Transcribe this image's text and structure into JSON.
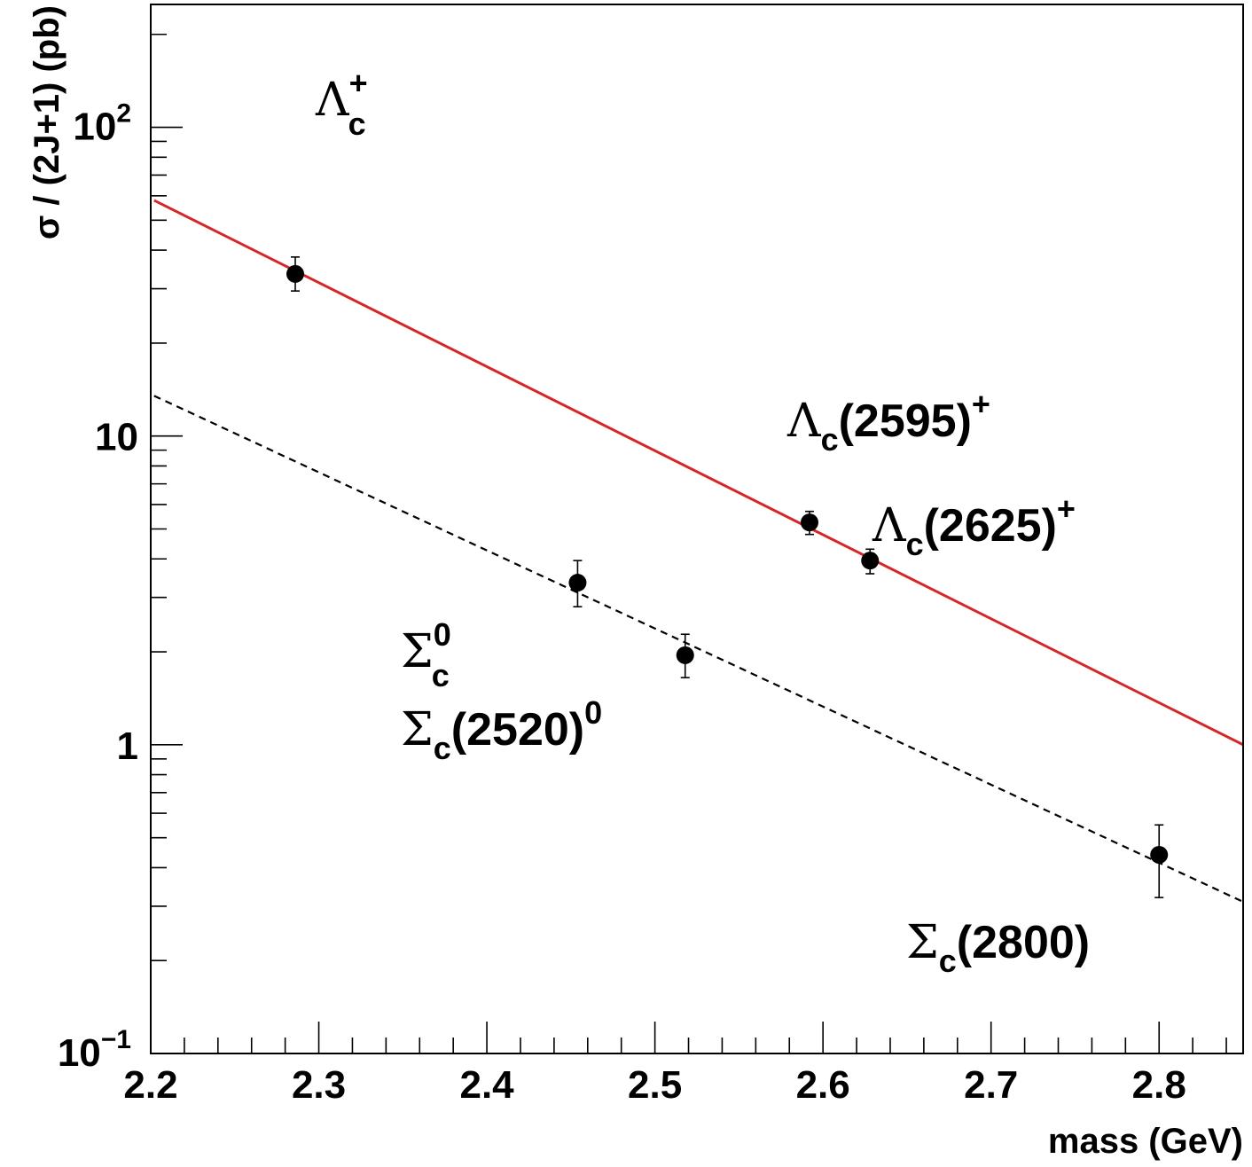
{
  "chart_data": {
    "type": "scatter",
    "xlabel": "mass (GeV)",
    "ylabel": "σ / (2J+1) (pb)",
    "xlim": [
      2.2,
      2.85
    ],
    "ylim": [
      0.1,
      250
    ],
    "yscale": "log",
    "grid": false,
    "x_ticks": [
      {
        "value": 2.2,
        "label": "2.2"
      },
      {
        "value": 2.3,
        "label": "2.3"
      },
      {
        "value": 2.4,
        "label": "2.4"
      },
      {
        "value": 2.5,
        "label": "2.5"
      },
      {
        "value": 2.6,
        "label": "2.6"
      },
      {
        "value": 2.7,
        "label": "2.7"
      },
      {
        "value": 2.8,
        "label": "2.8"
      }
    ],
    "y_ticks": [
      {
        "value": 0.1,
        "base": "10",
        "exp": "−1"
      },
      {
        "value": 1,
        "base": "1",
        "exp": ""
      },
      {
        "value": 10,
        "base": "10",
        "exp": ""
      },
      {
        "value": 100,
        "base": "10",
        "exp": "2"
      }
    ],
    "points": [
      {
        "x": 2.286,
        "y": 33.5,
        "yerr_low": 29.5,
        "yerr_high": 38.0
      },
      {
        "x": 2.454,
        "y": 3.35,
        "yerr_low": 2.8,
        "yerr_high": 3.95
      },
      {
        "x": 2.518,
        "y": 1.95,
        "yerr_low": 1.65,
        "yerr_high": 2.28
      },
      {
        "x": 2.592,
        "y": 5.25,
        "yerr_low": 4.8,
        "yerr_high": 5.7
      },
      {
        "x": 2.628,
        "y": 3.95,
        "yerr_low": 3.58,
        "yerr_high": 4.3
      },
      {
        "x": 2.8,
        "y": 0.44,
        "yerr_low": 0.32,
        "yerr_high": 0.55
      }
    ],
    "fits": [
      {
        "style": "solid",
        "color": "#d62728",
        "x": [
          2.202,
          2.85
        ],
        "y": [
          58.0,
          1.0
        ]
      },
      {
        "style": "dashed",
        "color": "#000000",
        "x": [
          2.202,
          2.85
        ],
        "y": [
          13.5,
          0.31
        ]
      }
    ],
    "annotations": [
      {
        "id": "lambda-c-plus",
        "symbol": "Λ",
        "sub": "c",
        "sup": "+",
        "text": "",
        "suffix_sup": ""
      },
      {
        "id": "lambda-c-2595",
        "symbol": "Λ",
        "sub": "c",
        "sup": "",
        "text": "(2595)",
        "suffix_sup": "+"
      },
      {
        "id": "lambda-c-2625",
        "symbol": "Λ",
        "sub": "c",
        "sup": "",
        "text": "(2625)",
        "suffix_sup": "+"
      },
      {
        "id": "sigma-c-0",
        "symbol": "Σ",
        "sub": "c",
        "sup": "0",
        "text": "",
        "suffix_sup": ""
      },
      {
        "id": "sigma-c-2520",
        "symbol": "Σ",
        "sub": "c",
        "sup": "",
        "text": "(2520)",
        "suffix_sup": "0"
      },
      {
        "id": "sigma-c-2800",
        "symbol": "Σ",
        "sub": "c",
        "sup": "",
        "text": "(2800)",
        "suffix_sup": ""
      }
    ]
  }
}
